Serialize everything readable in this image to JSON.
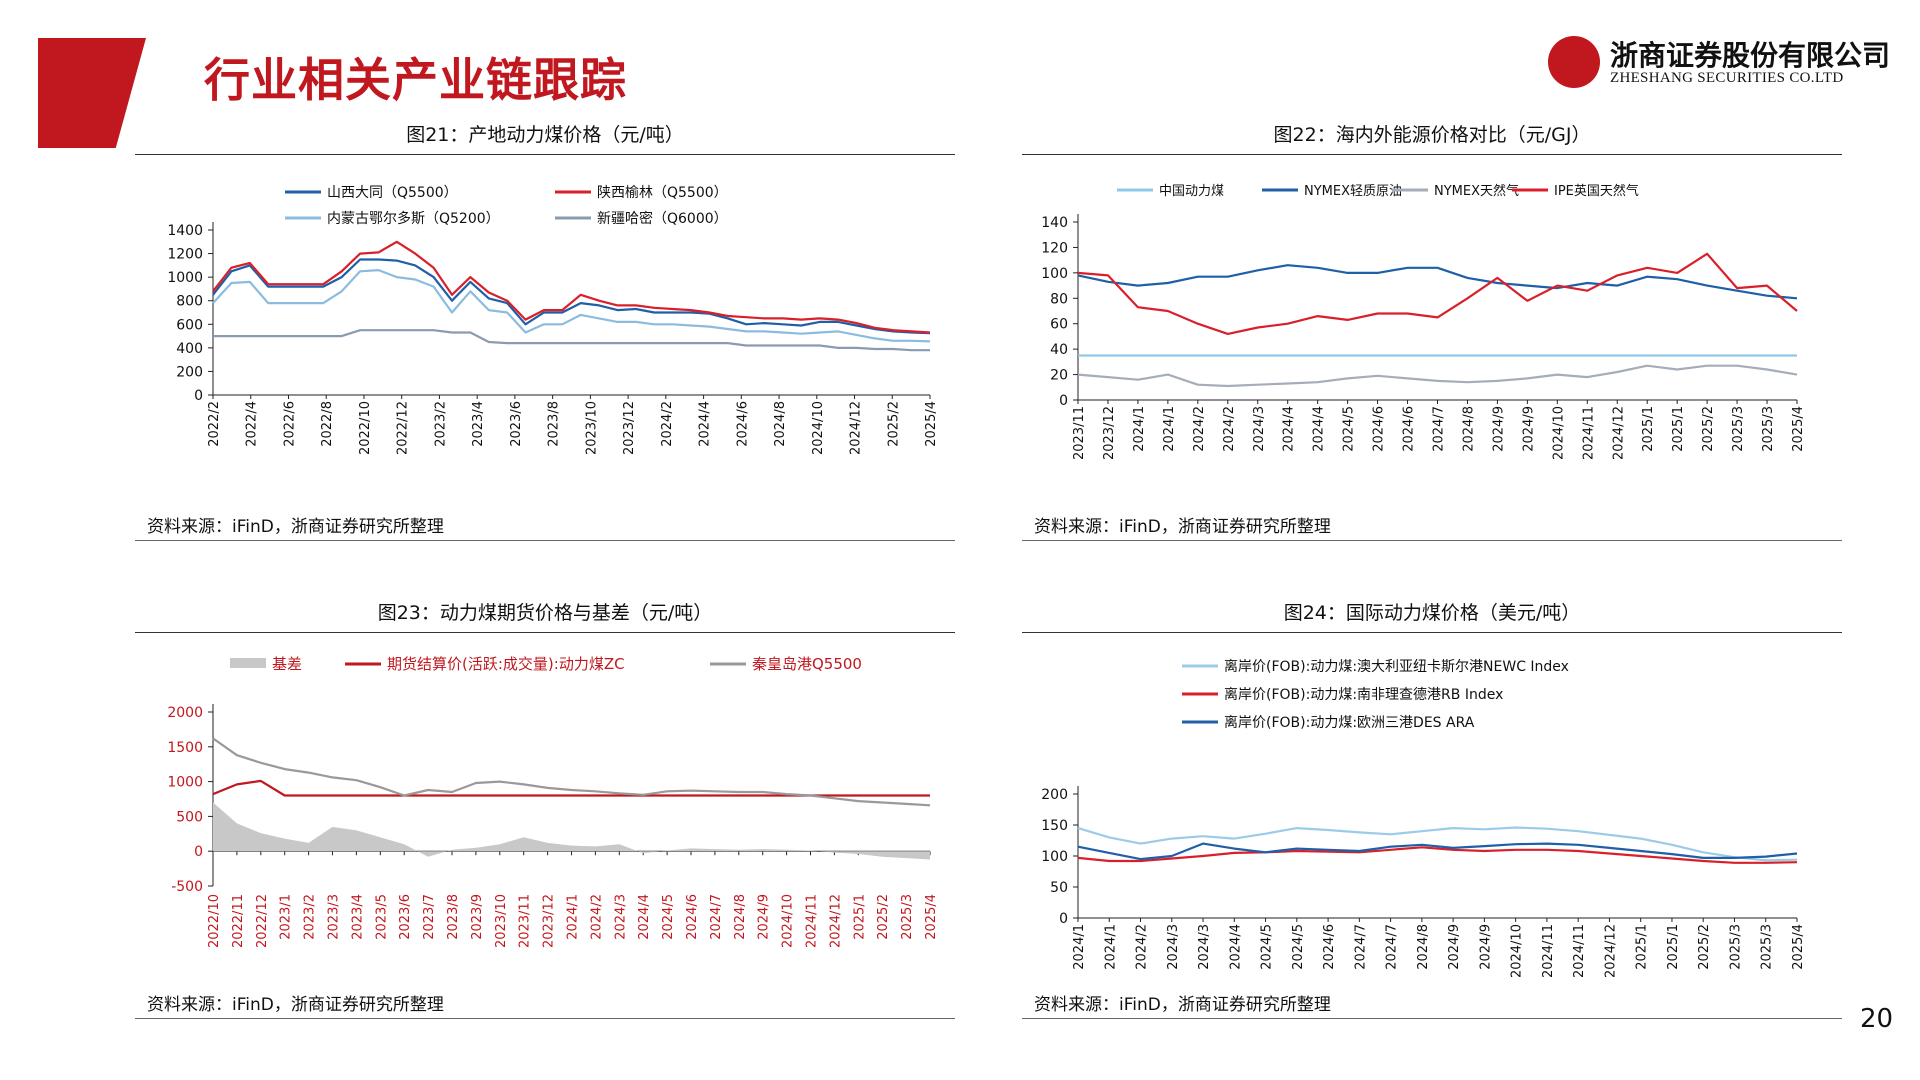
{
  "header": {
    "title": "行业相关产业链跟踪",
    "logo_cn": "浙商证券股份有限公司",
    "logo_en": "ZHESHANG SECURITIES CO.LTD",
    "accent_color": "#c0181e"
  },
  "page_number": "20",
  "panels": [
    {
      "title": "图21：产地动力煤价格（元/吨）",
      "source": "资料来源：iFinD，浙商证券研究所整理"
    },
    {
      "title": "图22：海内外能源价格对比（元/GJ）",
      "source": "资料来源：iFinD，浙商证券研究所整理"
    },
    {
      "title": "图23：动力煤期货价格与基差（元/吨）",
      "source": "资料来源：iFinD，浙商证券研究所整理"
    },
    {
      "title": "图24：国际动力煤价格（美元/吨）",
      "source": "资料来源：iFinD，浙商证券研究所整理"
    }
  ],
  "chart_data": [
    {
      "type": "line",
      "title": "图21：产地动力煤价格（元/吨）",
      "ylim": [
        0,
        1400
      ],
      "yticks": [
        0,
        200,
        400,
        600,
        800,
        1000,
        1200,
        1400
      ],
      "xticks": [
        "2022/2",
        "2022/4",
        "2022/6",
        "2022/8",
        "2022/10",
        "2022/12",
        "2023/2",
        "2023/4",
        "2023/6",
        "2023/8",
        "2023/10",
        "2023/12",
        "2024/2",
        "2024/4",
        "2024/6",
        "2024/8",
        "2024/10",
        "2024/12",
        "2025/2",
        "2025/4"
      ],
      "series": [
        {
          "name": "山西大同（Q5500）",
          "color": "#1f5fa8",
          "values": [
            850,
            1050,
            1100,
            920,
            920,
            920,
            920,
            1000,
            1150,
            1150,
            1140,
            1100,
            1000,
            800,
            960,
            820,
            780,
            600,
            700,
            700,
            780,
            760,
            720,
            730,
            700,
            700,
            700,
            690,
            650,
            600,
            610,
            600,
            590,
            620,
            620,
            590,
            560,
            540,
            530,
            525
          ]
        },
        {
          "name": "陕西榆林（Q5500）",
          "color": "#d9202a",
          "values": [
            880,
            1080,
            1120,
            940,
            940,
            940,
            940,
            1050,
            1200,
            1210,
            1300,
            1200,
            1080,
            850,
            1000,
            870,
            800,
            640,
            720,
            720,
            850,
            800,
            760,
            760,
            740,
            730,
            720,
            700,
            670,
            660,
            650,
            650,
            640,
            650,
            640,
            610,
            570,
            550,
            540,
            530
          ]
        },
        {
          "name": "内蒙古鄂尔多斯（Q5200）",
          "color": "#8bbce0",
          "values": [
            780,
            950,
            960,
            780,
            780,
            780,
            780,
            880,
            1050,
            1060,
            1000,
            980,
            920,
            700,
            880,
            720,
            700,
            530,
            600,
            600,
            680,
            650,
            620,
            620,
            600,
            600,
            590,
            580,
            560,
            540,
            540,
            530,
            520,
            530,
            540,
            510,
            480,
            460,
            460,
            455
          ]
        },
        {
          "name": "新疆哈密（Q6000）",
          "color": "#8a9bb0",
          "values": [
            500,
            500,
            500,
            500,
            500,
            500,
            500,
            500,
            550,
            550,
            550,
            550,
            550,
            530,
            530,
            450,
            440,
            440,
            440,
            440,
            440,
            440,
            440,
            440,
            440,
            440,
            440,
            440,
            440,
            420,
            420,
            420,
            420,
            420,
            400,
            400,
            390,
            390,
            380,
            380
          ]
        }
      ]
    },
    {
      "type": "line",
      "title": "图22：海内外能源价格对比（元/GJ）",
      "ylim": [
        0,
        140
      ],
      "yticks": [
        0,
        20,
        40,
        60,
        80,
        100,
        120,
        140
      ],
      "xticks": [
        "2023/11",
        "2023/12",
        "2024/1",
        "2024/1",
        "2024/2",
        "2024/2",
        "2024/3",
        "2024/4",
        "2024/4",
        "2024/5",
        "2024/6",
        "2024/6",
        "2024/7",
        "2024/8",
        "2024/9",
        "2024/9",
        "2024/10",
        "2024/11",
        "2024/12",
        "2025/1",
        "2025/1",
        "2025/2",
        "2025/3",
        "2025/3",
        "2025/4"
      ],
      "series": [
        {
          "name": "中国动力煤",
          "color": "#8fc8e8",
          "values": [
            35,
            35,
            35,
            35,
            35,
            35,
            35,
            35,
            35,
            35,
            35,
            35,
            35,
            35,
            35,
            35,
            35,
            35,
            35,
            35,
            35,
            35,
            35,
            35,
            35
          ]
        },
        {
          "name": "NYMEX轻质原油",
          "color": "#1f5fa8",
          "values": [
            98,
            93,
            90,
            92,
            97,
            97,
            102,
            106,
            104,
            100,
            100,
            104,
            104,
            96,
            92,
            90,
            88,
            92,
            90,
            97,
            95,
            90,
            86,
            82,
            80
          ]
        },
        {
          "name": "NYMEX天然气",
          "color": "#a6adb8",
          "values": [
            20,
            18,
            16,
            20,
            12,
            11,
            12,
            13,
            14,
            17,
            19,
            17,
            15,
            14,
            15,
            17,
            20,
            18,
            22,
            27,
            24,
            27,
            27,
            24,
            20
          ]
        },
        {
          "name": "IPE英国天然气",
          "color": "#d9202a",
          "values": [
            100,
            98,
            73,
            70,
            60,
            52,
            57,
            60,
            66,
            63,
            68,
            68,
            65,
            80,
            96,
            78,
            90,
            86,
            98,
            104,
            100,
            115,
            88,
            90,
            70
          ]
        }
      ]
    },
    {
      "type": "area",
      "title": "图23：动力煤期货价格与基差（元/吨）",
      "ylim": [
        -500,
        2000
      ],
      "yticks": [
        -500,
        0,
        500,
        1000,
        1500,
        2000
      ],
      "xticks": [
        "2022/10",
        "2022/11",
        "2022/12",
        "2023/1",
        "2023/2",
        "2023/3",
        "2023/4",
        "2023/5",
        "2023/6",
        "2023/7",
        "2023/8",
        "2023/9",
        "2023/10",
        "2023/11",
        "2023/12",
        "2024/1",
        "2024/2",
        "2024/3",
        "2024/4",
        "2024/5",
        "2024/6",
        "2024/7",
        "2024/8",
        "2024/9",
        "2024/10",
        "2024/11",
        "2024/12",
        "2025/1",
        "2025/2",
        "2025/3",
        "2025/4"
      ],
      "series": [
        {
          "name": "基差",
          "color": "#c8c8c8",
          "values": [
            700,
            400,
            260,
            180,
            120,
            350,
            300,
            200,
            100,
            -80,
            20,
            50,
            100,
            200,
            120,
            80,
            70,
            100,
            -30,
            10,
            40,
            30,
            20,
            30,
            20,
            10,
            -20,
            -40,
            -80,
            -100,
            -120
          ]
        },
        {
          "name": "期货结算价(活跃:成交量):动力煤ZC",
          "color": "#c0181e",
          "values": [
            820,
            960,
            1010,
            800,
            801,
            801,
            801,
            801,
            801,
            801,
            801,
            801,
            801,
            801,
            801,
            801,
            801,
            801,
            801,
            801,
            801,
            801,
            801,
            801,
            801,
            801,
            801,
            801,
            801,
            801,
            801
          ]
        },
        {
          "name": "秦皇岛港Q5500",
          "color": "#999999",
          "values": [
            1620,
            1380,
            1270,
            1180,
            1130,
            1060,
            1020,
            920,
            800,
            880,
            850,
            980,
            1000,
            960,
            910,
            880,
            860,
            830,
            810,
            860,
            870,
            860,
            850,
            850,
            820,
            800,
            760,
            720,
            700,
            680,
            660
          ]
        }
      ]
    },
    {
      "type": "line",
      "title": "图24：国际动力煤价格（美元/吨）",
      "ylim": [
        0,
        200
      ],
      "yticks": [
        0,
        50,
        100,
        150,
        200
      ],
      "xticks": [
        "2024/1",
        "2024/1",
        "2024/2",
        "2024/3",
        "2024/3",
        "2024/4",
        "2024/5",
        "2024/5",
        "2024/6",
        "2024/7",
        "2024/7",
        "2024/8",
        "2024/9",
        "2024/9",
        "2024/10",
        "2024/11",
        "2024/11",
        "2024/12",
        "2025/1",
        "2025/1",
        "2025/2",
        "2025/3",
        "2025/3",
        "2025/4"
      ],
      "series": [
        {
          "name": "离岸价(FOB):动力煤:澳大利亚纽卡斯尔港NEWC Index",
          "color": "#9ccbe8",
          "values": [
            145,
            130,
            120,
            128,
            132,
            128,
            136,
            145,
            142,
            138,
            135,
            140,
            145,
            143,
            146,
            144,
            140,
            134,
            128,
            118,
            106,
            98,
            93,
            94
          ]
        },
        {
          "name": "离岸价(FOB):动力煤:南非理查德港RB Index",
          "color": "#d9202a",
          "values": [
            97,
            92,
            92,
            96,
            100,
            105,
            106,
            108,
            107,
            106,
            110,
            114,
            110,
            108,
            110,
            110,
            108,
            104,
            100,
            96,
            92,
            89,
            89,
            90
          ]
        },
        {
          "name": "离岸价(FOB):动力煤:欧洲三港DES ARA",
          "color": "#1f5fa8",
          "values": [
            115,
            105,
            95,
            100,
            120,
            112,
            106,
            112,
            110,
            108,
            115,
            118,
            113,
            116,
            119,
            120,
            118,
            113,
            108,
            103,
            97,
            97,
            99,
            104
          ]
        }
      ]
    }
  ]
}
